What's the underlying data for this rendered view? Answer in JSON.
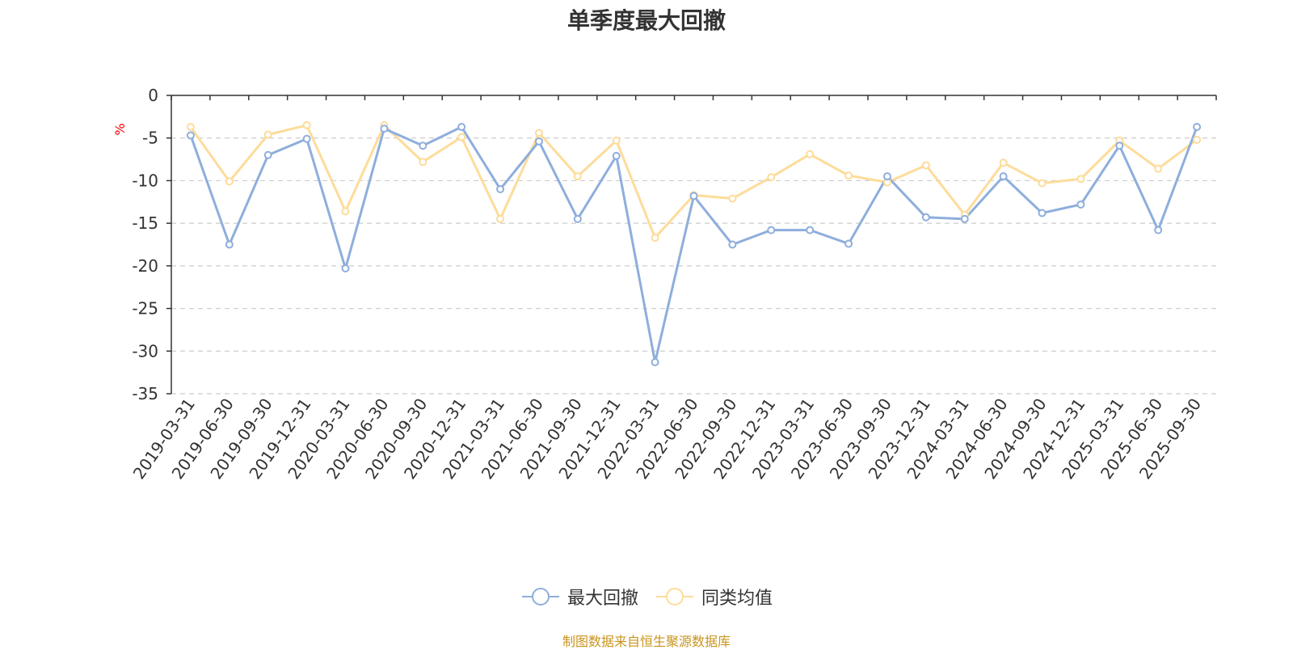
{
  "chart_data": {
    "type": "line",
    "title": "单季度最大回撤",
    "ylabel": "%",
    "xlabel": "",
    "ylim": [
      -35,
      0
    ],
    "yticks": [
      0,
      -5,
      -10,
      -15,
      -20,
      -25,
      -30,
      -35
    ],
    "grid": true,
    "legend_position": "bottom",
    "categories": [
      "2019-03-31",
      "2019-06-30",
      "2019-09-30",
      "2019-12-31",
      "2020-03-31",
      "2020-06-30",
      "2020-09-30",
      "2020-12-31",
      "2021-03-31",
      "2021-06-30",
      "2021-09-30",
      "2021-12-31",
      "2022-03-31",
      "2022-06-30",
      "2022-09-30",
      "2022-12-31",
      "2023-03-31",
      "2023-06-30",
      "2023-09-30",
      "2023-12-31",
      "2024-03-31",
      "2024-06-30",
      "2024-09-30",
      "2024-12-31",
      "2025-03-31",
      "2025-06-30",
      "2025-09-30"
    ],
    "series": [
      {
        "name": "最大回撤",
        "color": "#8eaedc",
        "values": [
          -4.7,
          -17.5,
          -7.0,
          -5.1,
          -20.3,
          -3.9,
          -5.9,
          -3.7,
          -11.0,
          -5.4,
          -14.5,
          -7.1,
          -31.3,
          -11.8,
          -17.5,
          -15.8,
          -15.8,
          -17.4,
          -9.5,
          -14.3,
          -14.5,
          -9.5,
          -13.8,
          -12.8,
          -5.9,
          -15.8,
          -3.7
        ]
      },
      {
        "name": "同类均值",
        "color": "#fddc9a",
        "values": [
          -3.7,
          -10.1,
          -4.6,
          -3.5,
          -13.6,
          -3.5,
          -7.8,
          -4.9,
          -14.5,
          -4.4,
          -9.5,
          -5.3,
          -16.7,
          -11.7,
          -12.1,
          -9.6,
          -6.9,
          -9.4,
          -10.2,
          -8.2,
          -14.0,
          -7.9,
          -10.3,
          -9.8,
          -5.3,
          -8.6,
          -5.2
        ]
      }
    ]
  },
  "source_note": "制图数据来自恒生聚源数据库"
}
